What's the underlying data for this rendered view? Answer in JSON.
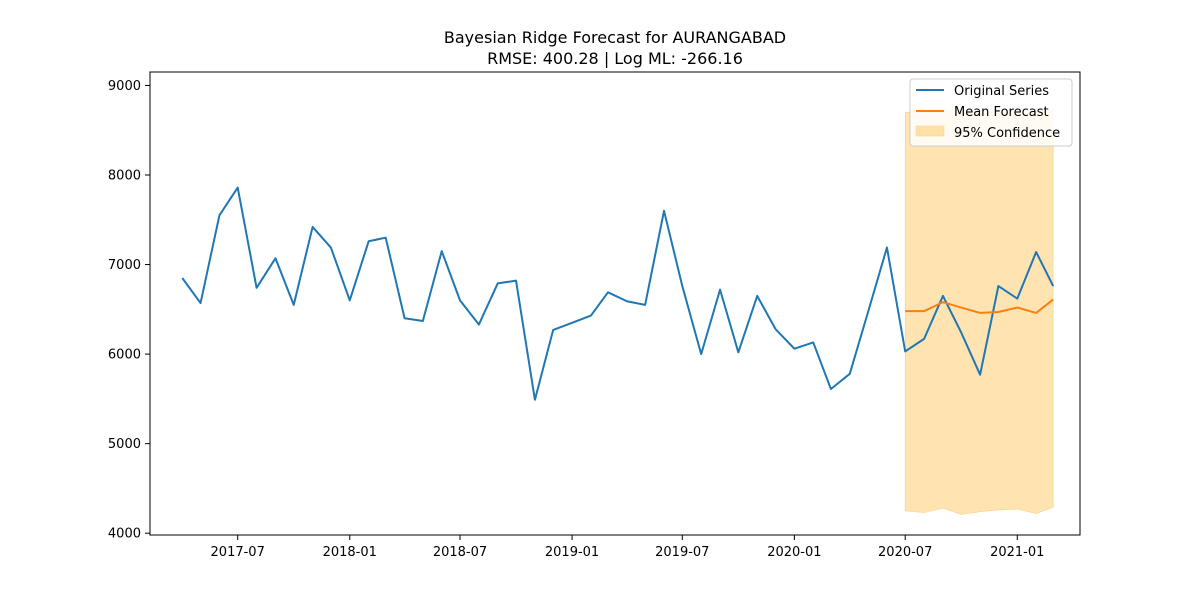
{
  "chart_data": {
    "type": "line",
    "title": "Bayesian Ridge Forecast for AURANGABAD",
    "subtitle": "RMSE: 400.28 | Log ML: -266.16",
    "xlabel": "",
    "ylabel": "",
    "ylim": [
      3980,
      9150
    ],
    "xlim": [
      "2017-02-07",
      "2021-04-14"
    ],
    "y_ticks": [
      4000,
      5000,
      6000,
      7000,
      8000,
      9000
    ],
    "x_ticks": [
      "2017-07",
      "2018-01",
      "2018-07",
      "2019-01",
      "2019-07",
      "2020-01",
      "2020-07",
      "2021-01"
    ],
    "grid": false,
    "legend_position": "upper right",
    "colors": {
      "original": "#1f77b4",
      "forecast": "#ff7f0e",
      "confidence": "#ffe0a8"
    },
    "series": [
      {
        "name": "Original Series",
        "x": [
          "2017-04",
          "2017-05",
          "2017-06",
          "2017-07",
          "2017-08",
          "2017-09",
          "2017-10",
          "2017-11",
          "2017-12",
          "2018-01",
          "2018-02",
          "2018-03",
          "2018-04",
          "2018-05",
          "2018-06",
          "2018-07",
          "2018-08",
          "2018-09",
          "2018-10",
          "2018-11",
          "2018-12",
          "2019-01",
          "2019-02",
          "2019-03",
          "2019-04",
          "2019-05",
          "2019-06",
          "2019-07",
          "2019-08",
          "2019-09",
          "2019-10",
          "2019-11",
          "2019-12",
          "2020-01",
          "2020-02",
          "2020-03",
          "2020-04",
          "2020-05",
          "2020-06",
          "2020-07",
          "2020-08",
          "2020-09",
          "2020-10",
          "2020-11",
          "2020-12",
          "2021-01",
          "2021-02",
          "2021-03"
        ],
        "values": [
          6850,
          6570,
          7550,
          7860,
          6740,
          7070,
          6550,
          7420,
          7190,
          6600,
          7260,
          7300,
          6400,
          6370,
          7150,
          6600,
          6330,
          6790,
          6820,
          5490,
          6270,
          6350,
          6430,
          6690,
          6590,
          6550,
          7600,
          6760,
          6000,
          6720,
          6020,
          6650,
          6280,
          6060,
          6130,
          5610,
          5780,
          6470,
          7190,
          6030,
          6170,
          6650,
          6240,
          5770,
          6760,
          6620,
          7140,
          6760
        ]
      },
      {
        "name": "Mean Forecast",
        "x": [
          "2020-07",
          "2020-08",
          "2020-09",
          "2020-10",
          "2020-11",
          "2020-12",
          "2021-01",
          "2021-02",
          "2021-03"
        ],
        "values": [
          6480,
          6480,
          6580,
          6520,
          6460,
          6470,
          6520,
          6460,
          6610
        ]
      }
    ],
    "confidence_band": {
      "name": "95% Confidence",
      "x": [
        "2020-07",
        "2020-08",
        "2020-09",
        "2020-10",
        "2020-11",
        "2020-12",
        "2021-01",
        "2021-02",
        "2021-03"
      ],
      "upper": [
        8700,
        8710,
        8730,
        8720,
        8710,
        8720,
        8730,
        8720,
        8720
      ],
      "lower": [
        4250,
        4230,
        4280,
        4210,
        4240,
        4260,
        4270,
        4220,
        4290
      ]
    }
  }
}
